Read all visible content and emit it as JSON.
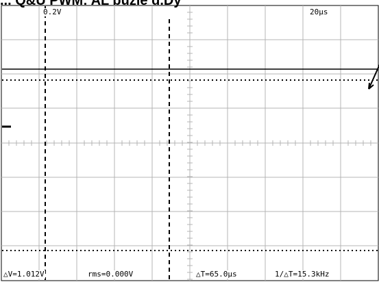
{
  "caption": "... Q&U PWM: AL buzle d.Dy",
  "scope": {
    "volts_per_div": "0.2V",
    "time_per_div": "20µs",
    "readouts": {
      "delta_v": "△V=1.012V",
      "rms": "rms=0.000V",
      "delta_t": "△T=65.0µs",
      "frequency": "1/△T=15.3kHz"
    }
  },
  "colors": {
    "grid": "#b4b4b4",
    "trace": "#000000",
    "background": "#ffffff"
  }
}
